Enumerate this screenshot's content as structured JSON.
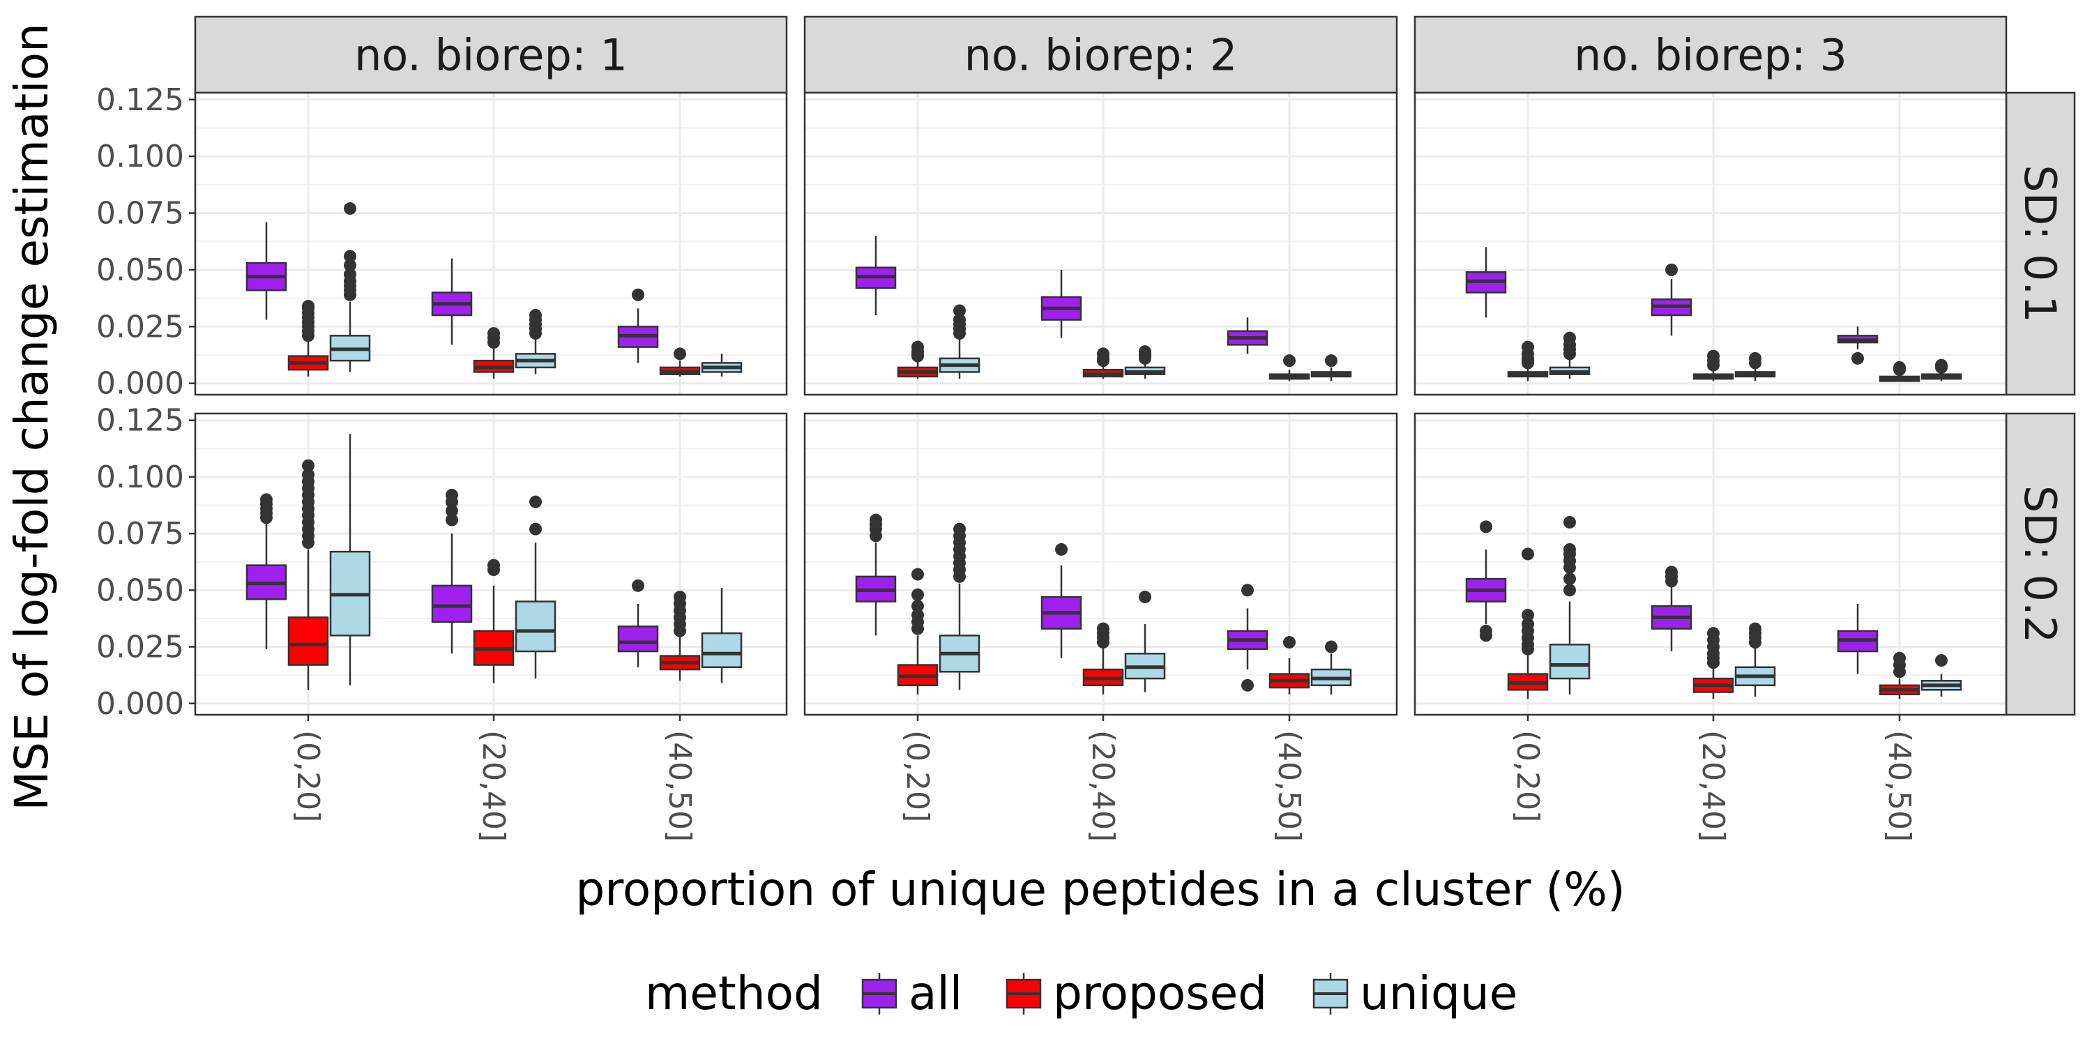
{
  "chart_data": {
    "type": "boxplot",
    "title": "",
    "xlabel": "proportion of unique peptides in a cluster (%)",
    "ylabel": "MSE of log-fold change estimation",
    "categories": [
      "(0,20]",
      "(20,40]",
      "(40,50]"
    ],
    "facet_columns": [
      "no. biorep: 1",
      "no. biorep: 2",
      "no. biorep: 3"
    ],
    "facet_rows": [
      "SD: 0.1",
      "SD: 0.2"
    ],
    "y_ticks": [
      "0.000",
      "0.025",
      "0.050",
      "0.075",
      "0.100",
      "0.125"
    ],
    "ylim": [
      -0.005,
      0.128
    ],
    "legend": {
      "title": "method",
      "position": "bottom",
      "entries": [
        "all",
        "proposed",
        "unique"
      ]
    },
    "series_colors": {
      "all": "#a020f0",
      "proposed": "#ff0000",
      "unique": "#add8e6"
    },
    "grid": true,
    "panels": [
      {
        "column": "no. biorep: 1",
        "row": "SD: 0.1",
        "boxes": [
          {
            "category": "(0,20]",
            "method": "all",
            "whisker_low": 0.028,
            "q1": 0.041,
            "median": 0.047,
            "q3": 0.053,
            "whisker_high": 0.071,
            "outliers": []
          },
          {
            "category": "(0,20]",
            "method": "proposed",
            "whisker_low": 0.003,
            "q1": 0.006,
            "median": 0.009,
            "q3": 0.012,
            "whisker_high": 0.019,
            "outliers": [
              0.021,
              0.023,
              0.025,
              0.027,
              0.029,
              0.031,
              0.033,
              0.034
            ]
          },
          {
            "category": "(0,20]",
            "method": "unique",
            "whisker_low": 0.005,
            "q1": 0.01,
            "median": 0.015,
            "q3": 0.021,
            "whisker_high": 0.036,
            "outliers": [
              0.039,
              0.041,
              0.043,
              0.045,
              0.048,
              0.052,
              0.056,
              0.077
            ]
          },
          {
            "category": "(20,40]",
            "method": "all",
            "whisker_low": 0.017,
            "q1": 0.03,
            "median": 0.035,
            "q3": 0.04,
            "whisker_high": 0.055,
            "outliers": []
          },
          {
            "category": "(20,40]",
            "method": "proposed",
            "whisker_low": 0.002,
            "q1": 0.005,
            "median": 0.007,
            "q3": 0.01,
            "whisker_high": 0.016,
            "outliers": [
              0.018,
              0.02,
              0.022
            ]
          },
          {
            "category": "(20,40]",
            "method": "unique",
            "whisker_low": 0.004,
            "q1": 0.007,
            "median": 0.01,
            "q3": 0.013,
            "whisker_high": 0.02,
            "outliers": [
              0.022,
              0.024,
              0.026,
              0.028,
              0.03
            ]
          },
          {
            "category": "(40,50]",
            "method": "all",
            "whisker_low": 0.009,
            "q1": 0.016,
            "median": 0.021,
            "q3": 0.025,
            "whisker_high": 0.033,
            "outliers": [
              0.039
            ]
          },
          {
            "category": "(40,50]",
            "method": "proposed",
            "whisker_low": 0.003,
            "q1": 0.004,
            "median": 0.005,
            "q3": 0.007,
            "whisker_high": 0.01,
            "outliers": [
              0.013
            ]
          },
          {
            "category": "(40,50]",
            "method": "unique",
            "whisker_low": 0.003,
            "q1": 0.005,
            "median": 0.007,
            "q3": 0.009,
            "whisker_high": 0.013,
            "outliers": []
          }
        ]
      },
      {
        "column": "no. biorep: 2",
        "row": "SD: 0.1",
        "boxes": [
          {
            "category": "(0,20]",
            "method": "all",
            "whisker_low": 0.03,
            "q1": 0.042,
            "median": 0.047,
            "q3": 0.051,
            "whisker_high": 0.065,
            "outliers": []
          },
          {
            "category": "(0,20]",
            "method": "proposed",
            "whisker_low": 0.002,
            "q1": 0.003,
            "median": 0.005,
            "q3": 0.007,
            "whisker_high": 0.011,
            "outliers": [
              0.012,
              0.013,
              0.014,
              0.016
            ]
          },
          {
            "category": "(0,20]",
            "method": "unique",
            "whisker_low": 0.002,
            "q1": 0.005,
            "median": 0.008,
            "q3": 0.011,
            "whisker_high": 0.02,
            "outliers": [
              0.022,
              0.024,
              0.026,
              0.028,
              0.032
            ]
          },
          {
            "category": "(20,40]",
            "method": "all",
            "whisker_low": 0.02,
            "q1": 0.028,
            "median": 0.033,
            "q3": 0.038,
            "whisker_high": 0.05,
            "outliers": []
          },
          {
            "category": "(20,40]",
            "method": "proposed",
            "whisker_low": 0.002,
            "q1": 0.003,
            "median": 0.004,
            "q3": 0.006,
            "whisker_high": 0.009,
            "outliers": [
              0.01,
              0.011,
              0.013
            ]
          },
          {
            "category": "(20,40]",
            "method": "unique",
            "whisker_low": 0.002,
            "q1": 0.004,
            "median": 0.005,
            "q3": 0.007,
            "whisker_high": 0.01,
            "outliers": [
              0.011,
              0.012,
              0.013,
              0.014
            ]
          },
          {
            "category": "(40,50]",
            "method": "all",
            "whisker_low": 0.013,
            "q1": 0.017,
            "median": 0.02,
            "q3": 0.023,
            "whisker_high": 0.029,
            "outliers": []
          },
          {
            "category": "(40,50]",
            "method": "proposed",
            "whisker_low": 0.001,
            "q1": 0.002,
            "median": 0.003,
            "q3": 0.004,
            "whisker_high": 0.006,
            "outliers": [
              0.01
            ]
          },
          {
            "category": "(40,50]",
            "method": "unique",
            "whisker_low": 0.001,
            "q1": 0.003,
            "median": 0.004,
            "q3": 0.005,
            "whisker_high": 0.007,
            "outliers": [
              0.01
            ]
          }
        ]
      },
      {
        "column": "no. biorep: 3",
        "row": "SD: 0.1",
        "boxes": [
          {
            "category": "(0,20]",
            "method": "all",
            "whisker_low": 0.029,
            "q1": 0.04,
            "median": 0.045,
            "q3": 0.049,
            "whisker_high": 0.06,
            "outliers": []
          },
          {
            "category": "(0,20]",
            "method": "proposed",
            "whisker_low": 0.001,
            "q1": 0.003,
            "median": 0.004,
            "q3": 0.005,
            "whisker_high": 0.008,
            "outliers": [
              0.009,
              0.01,
              0.011,
              0.013,
              0.016
            ]
          },
          {
            "category": "(0,20]",
            "method": "unique",
            "whisker_low": 0.002,
            "q1": 0.004,
            "median": 0.005,
            "q3": 0.007,
            "whisker_high": 0.012,
            "outliers": [
              0.013,
              0.015,
              0.017,
              0.02
            ]
          },
          {
            "category": "(20,40]",
            "method": "all",
            "whisker_low": 0.021,
            "q1": 0.03,
            "median": 0.034,
            "q3": 0.037,
            "whisker_high": 0.046,
            "outliers": [
              0.05
            ]
          },
          {
            "category": "(20,40]",
            "method": "proposed",
            "whisker_low": 0.001,
            "q1": 0.002,
            "median": 0.003,
            "q3": 0.004,
            "whisker_high": 0.006,
            "outliers": [
              0.008,
              0.01,
              0.012
            ]
          },
          {
            "category": "(20,40]",
            "method": "unique",
            "whisker_low": 0.001,
            "q1": 0.003,
            "median": 0.004,
            "q3": 0.005,
            "whisker_high": 0.007,
            "outliers": [
              0.009,
              0.011
            ]
          },
          {
            "category": "(40,50]",
            "method": "all",
            "whisker_low": 0.015,
            "q1": 0.018,
            "median": 0.019,
            "q3": 0.021,
            "whisker_high": 0.025,
            "outliers": [
              0.011
            ]
          },
          {
            "category": "(40,50]",
            "method": "proposed",
            "whisker_low": 0.001,
            "q1": 0.001,
            "median": 0.002,
            "q3": 0.003,
            "whisker_high": 0.004,
            "outliers": [
              0.006,
              0.007
            ]
          },
          {
            "category": "(40,50]",
            "method": "unique",
            "whisker_low": 0.001,
            "q1": 0.002,
            "median": 0.003,
            "q3": 0.004,
            "whisker_high": 0.005,
            "outliers": [
              0.007,
              0.008
            ]
          }
        ]
      },
      {
        "column": "no. biorep: 1",
        "row": "SD: 0.2",
        "boxes": [
          {
            "category": "(0,20]",
            "method": "all",
            "whisker_low": 0.024,
            "q1": 0.046,
            "median": 0.053,
            "q3": 0.061,
            "whisker_high": 0.08,
            "outliers": [
              0.082,
              0.084,
              0.086,
              0.088,
              0.09
            ]
          },
          {
            "category": "(0,20]",
            "method": "proposed",
            "whisker_low": 0.006,
            "q1": 0.017,
            "median": 0.026,
            "q3": 0.038,
            "whisker_high": 0.068,
            "outliers": [
              0.071,
              0.074,
              0.077,
              0.08,
              0.083,
              0.086,
              0.089,
              0.092,
              0.095,
              0.098,
              0.101,
              0.105
            ]
          },
          {
            "category": "(0,20]",
            "method": "unique",
            "whisker_low": 0.008,
            "q1": 0.03,
            "median": 0.048,
            "q3": 0.067,
            "whisker_high": 0.119,
            "outliers": []
          },
          {
            "category": "(20,40]",
            "method": "all",
            "whisker_low": 0.022,
            "q1": 0.036,
            "median": 0.043,
            "q3": 0.052,
            "whisker_high": 0.075,
            "outliers": [
              0.081,
              0.085,
              0.089,
              0.092
            ]
          },
          {
            "category": "(20,40]",
            "method": "proposed",
            "whisker_low": 0.009,
            "q1": 0.017,
            "median": 0.024,
            "q3": 0.032,
            "whisker_high": 0.052,
            "outliers": [
              0.059,
              0.061
            ]
          },
          {
            "category": "(20,40]",
            "method": "unique",
            "whisker_low": 0.011,
            "q1": 0.023,
            "median": 0.032,
            "q3": 0.045,
            "whisker_high": 0.071,
            "outliers": [
              0.077,
              0.089
            ]
          },
          {
            "category": "(40,50]",
            "method": "all",
            "whisker_low": 0.016,
            "q1": 0.023,
            "median": 0.027,
            "q3": 0.034,
            "whisker_high": 0.044,
            "outliers": [
              0.052
            ]
          },
          {
            "category": "(40,50]",
            "method": "proposed",
            "whisker_low": 0.01,
            "q1": 0.015,
            "median": 0.018,
            "q3": 0.021,
            "whisker_high": 0.03,
            "outliers": [
              0.032,
              0.035,
              0.038,
              0.041,
              0.044,
              0.047
            ]
          },
          {
            "category": "(40,50]",
            "method": "unique",
            "whisker_low": 0.009,
            "q1": 0.016,
            "median": 0.022,
            "q3": 0.031,
            "whisker_high": 0.051,
            "outliers": []
          }
        ]
      },
      {
        "column": "no. biorep: 2",
        "row": "SD: 0.2",
        "boxes": [
          {
            "category": "(0,20]",
            "method": "all",
            "whisker_low": 0.03,
            "q1": 0.045,
            "median": 0.05,
            "q3": 0.056,
            "whisker_high": 0.071,
            "outliers": [
              0.074,
              0.077,
              0.079,
              0.081
            ]
          },
          {
            "category": "(0,20]",
            "method": "proposed",
            "whisker_low": 0.004,
            "q1": 0.008,
            "median": 0.012,
            "q3": 0.017,
            "whisker_high": 0.03,
            "outliers": [
              0.033,
              0.036,
              0.039,
              0.043,
              0.048,
              0.057
            ]
          },
          {
            "category": "(0,20]",
            "method": "unique",
            "whisker_low": 0.006,
            "q1": 0.014,
            "median": 0.022,
            "q3": 0.03,
            "whisker_high": 0.053,
            "outliers": [
              0.056,
              0.059,
              0.062,
              0.065,
              0.068,
              0.071,
              0.074,
              0.077
            ]
          },
          {
            "category": "(20,40]",
            "method": "all",
            "whisker_low": 0.02,
            "q1": 0.033,
            "median": 0.04,
            "q3": 0.047,
            "whisker_high": 0.061,
            "outliers": [
              0.068
            ]
          },
          {
            "category": "(20,40]",
            "method": "proposed",
            "whisker_low": 0.004,
            "q1": 0.008,
            "median": 0.011,
            "q3": 0.015,
            "whisker_high": 0.025,
            "outliers": [
              0.027,
              0.029,
              0.031,
              0.033
            ]
          },
          {
            "category": "(20,40]",
            "method": "unique",
            "whisker_low": 0.005,
            "q1": 0.011,
            "median": 0.016,
            "q3": 0.022,
            "whisker_high": 0.035,
            "outliers": [
              0.047
            ]
          },
          {
            "category": "(40,50]",
            "method": "all",
            "whisker_low": 0.015,
            "q1": 0.024,
            "median": 0.028,
            "q3": 0.032,
            "whisker_high": 0.042,
            "outliers": [
              0.05,
              0.008
            ]
          },
          {
            "category": "(40,50]",
            "method": "proposed",
            "whisker_low": 0.004,
            "q1": 0.007,
            "median": 0.01,
            "q3": 0.013,
            "whisker_high": 0.02,
            "outliers": [
              0.027
            ]
          },
          {
            "category": "(40,50]",
            "method": "unique",
            "whisker_low": 0.004,
            "q1": 0.008,
            "median": 0.011,
            "q3": 0.015,
            "whisker_high": 0.022,
            "outliers": [
              0.025
            ]
          }
        ]
      },
      {
        "column": "no. biorep: 3",
        "row": "SD: 0.2",
        "boxes": [
          {
            "category": "(0,20]",
            "method": "all",
            "whisker_low": 0.035,
            "q1": 0.045,
            "median": 0.05,
            "q3": 0.055,
            "whisker_high": 0.068,
            "outliers": [
              0.078,
              0.032,
              0.03
            ]
          },
          {
            "category": "(0,20]",
            "method": "proposed",
            "whisker_low": 0.002,
            "q1": 0.006,
            "median": 0.009,
            "q3": 0.013,
            "whisker_high": 0.022,
            "outliers": [
              0.024,
              0.026,
              0.029,
              0.032,
              0.035,
              0.039,
              0.066
            ]
          },
          {
            "category": "(0,20]",
            "method": "unique",
            "whisker_low": 0.004,
            "q1": 0.011,
            "median": 0.017,
            "q3": 0.026,
            "whisker_high": 0.045,
            "outliers": [
              0.05,
              0.055,
              0.06,
              0.063,
              0.066,
              0.068,
              0.08
            ]
          },
          {
            "category": "(20,40]",
            "method": "all",
            "whisker_low": 0.023,
            "q1": 0.033,
            "median": 0.038,
            "q3": 0.043,
            "whisker_high": 0.052,
            "outliers": [
              0.054,
              0.056,
              0.058
            ]
          },
          {
            "category": "(20,40]",
            "method": "proposed",
            "whisker_low": 0.002,
            "q1": 0.005,
            "median": 0.008,
            "q3": 0.011,
            "whisker_high": 0.016,
            "outliers": [
              0.018,
              0.02,
              0.022,
              0.025,
              0.028,
              0.031
            ]
          },
          {
            "category": "(20,40]",
            "method": "unique",
            "whisker_low": 0.003,
            "q1": 0.008,
            "median": 0.012,
            "q3": 0.016,
            "whisker_high": 0.025,
            "outliers": [
              0.027,
              0.029,
              0.031,
              0.033
            ]
          },
          {
            "category": "(40,50]",
            "method": "all",
            "whisker_low": 0.013,
            "q1": 0.023,
            "median": 0.028,
            "q3": 0.032,
            "whisker_high": 0.044,
            "outliers": []
          },
          {
            "category": "(40,50]",
            "method": "proposed",
            "whisker_low": 0.002,
            "q1": 0.004,
            "median": 0.006,
            "q3": 0.008,
            "whisker_high": 0.011,
            "outliers": [
              0.014,
              0.017,
              0.02
            ]
          },
          {
            "category": "(40,50]",
            "method": "unique",
            "whisker_low": 0.003,
            "q1": 0.006,
            "median": 0.008,
            "q3": 0.01,
            "whisker_high": 0.013,
            "outliers": [
              0.019
            ]
          }
        ]
      }
    ]
  }
}
